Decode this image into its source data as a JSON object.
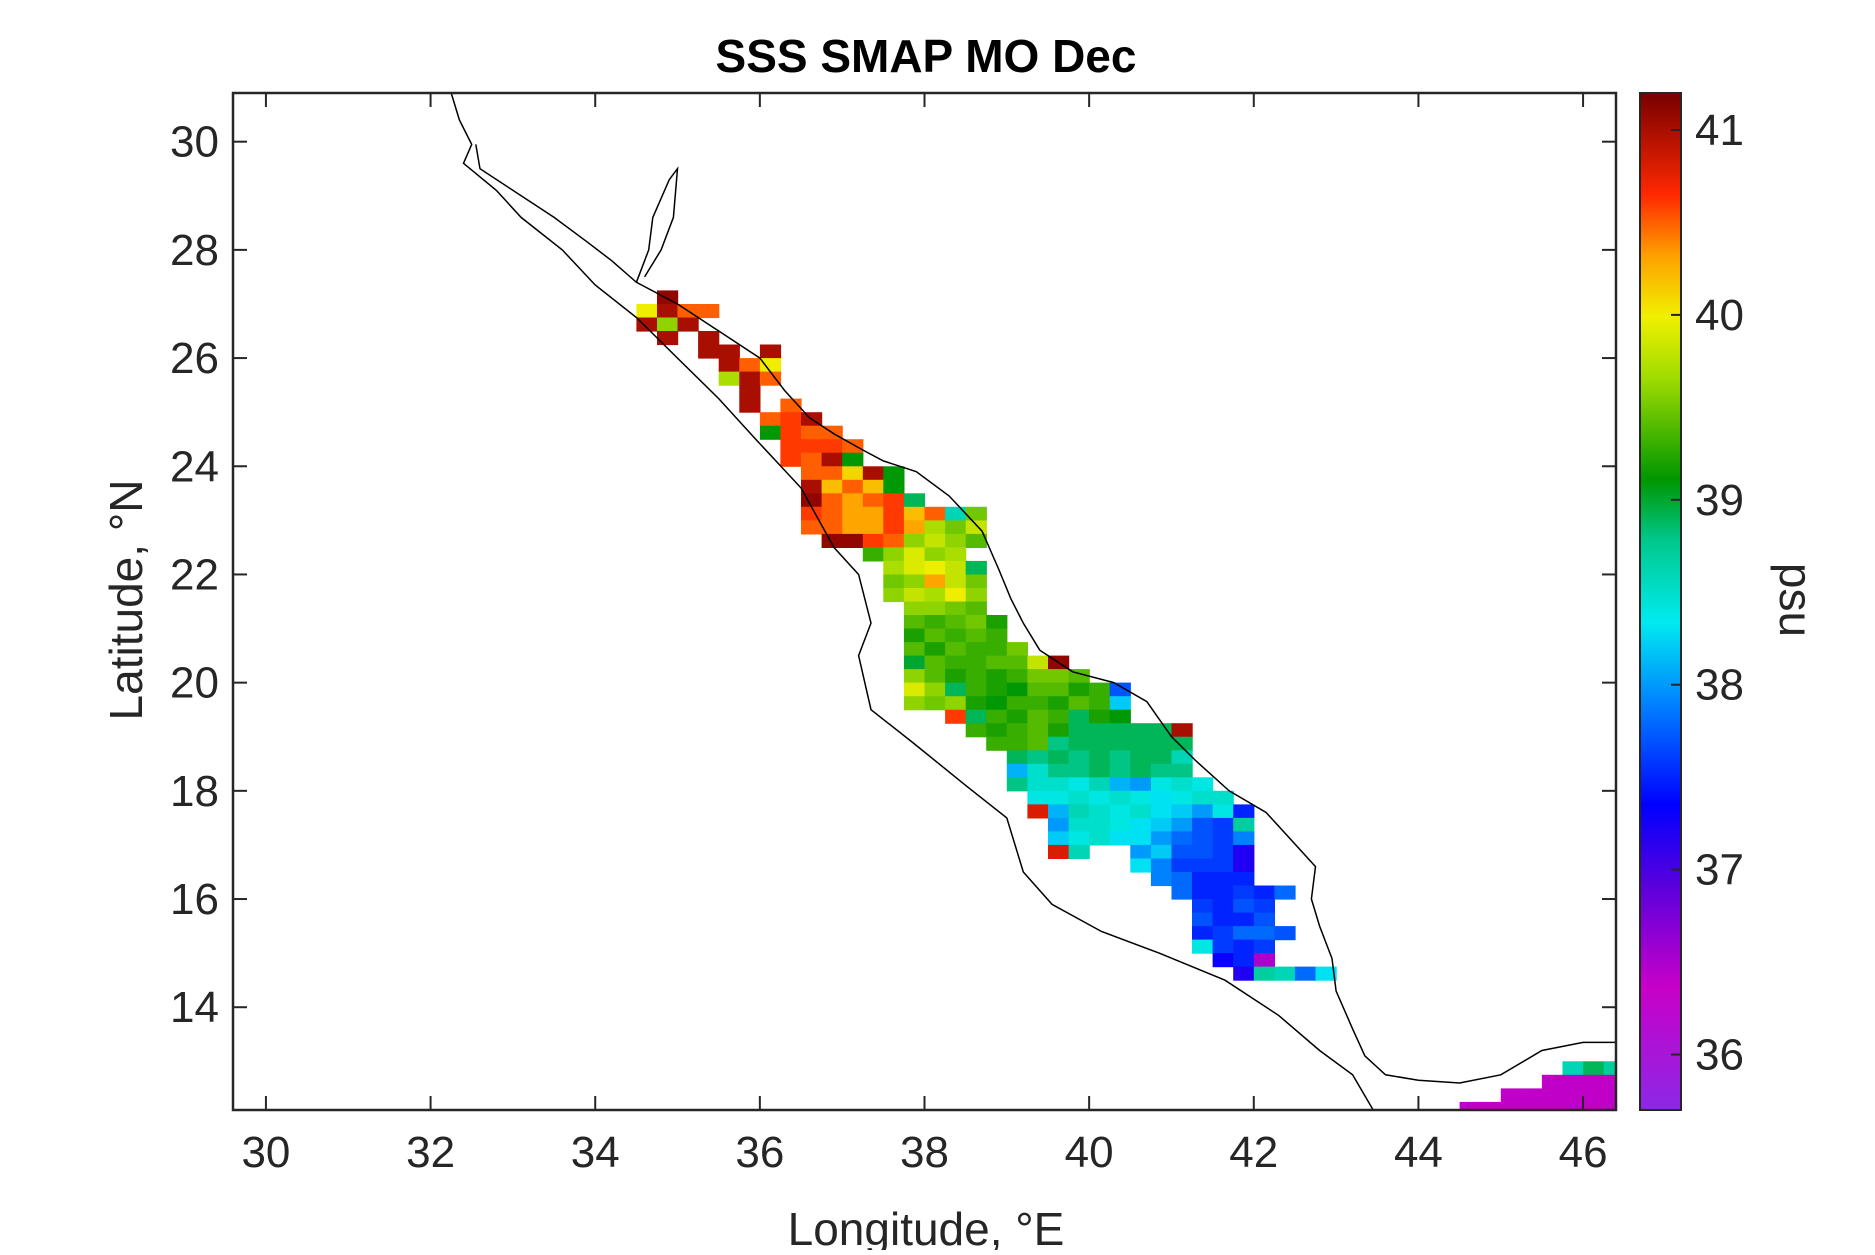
{
  "chart_data": {
    "type": "heatmap",
    "title": "SSS SMAP MO Dec",
    "xlabel": "Longitude, °E",
    "ylabel": "Latitude, °N",
    "xlim": [
      29.6,
      46.4
    ],
    "ylim": [
      12.1,
      30.9
    ],
    "xticks": [
      30,
      32,
      34,
      36,
      38,
      40,
      42,
      44,
      46
    ],
    "yticks": [
      14,
      16,
      18,
      20,
      22,
      24,
      26,
      28,
      30
    ],
    "colorbar": {
      "label": "psu",
      "range": [
        35.7,
        41.2
      ],
      "ticks": [
        36,
        37,
        38,
        39,
        40,
        41
      ],
      "colormap": "jet-rainbow-purple-to-maroon"
    },
    "grid": false,
    "cell_size_deg": 0.25,
    "rows": [
      {
        "lat": 27.0,
        "lon_start": 34.75,
        "values": [
          41.1
        ]
      },
      {
        "lat": 26.75,
        "lon_start": 34.5,
        "values": [
          40.0,
          41.0,
          40.5,
          40.5
        ]
      },
      {
        "lat": 26.5,
        "lon_start": 34.5,
        "values": [
          41.0,
          39.6,
          41.0
        ]
      },
      {
        "lat": 26.25,
        "lon_start": 34.75,
        "values": [
          41.0,
          null,
          41.0
        ]
      },
      {
        "lat": 26.0,
        "lon_start": 35.25,
        "values": [
          41.0,
          41.0,
          null,
          41.0
        ]
      },
      {
        "lat": 25.75,
        "lon_start": 35.5,
        "values": [
          41.0,
          40.5,
          40.0
        ]
      },
      {
        "lat": 25.5,
        "lon_start": 35.5,
        "values": [
          39.7,
          41.0,
          40.5
        ]
      },
      {
        "lat": 25.25,
        "lon_start": 35.75,
        "values": [
          41.0
        ]
      },
      {
        "lat": 25.0,
        "lon_start": 35.75,
        "values": [
          41.0,
          null,
          40.5
        ]
      },
      {
        "lat": 24.75,
        "lon_start": 36.0,
        "values": [
          40.5,
          40.6,
          41.0
        ]
      },
      {
        "lat": 24.5,
        "lon_start": 36.0,
        "values": [
          39.1,
          40.6,
          40.5,
          40.5
        ]
      },
      {
        "lat": 24.25,
        "lon_start": 36.25,
        "values": [
          40.6,
          40.6,
          40.6,
          40.5
        ]
      },
      {
        "lat": 24.0,
        "lon_start": 36.25,
        "values": [
          40.6,
          40.5,
          41.0,
          39.1
        ]
      },
      {
        "lat": 23.75,
        "lon_start": 36.5,
        "values": [
          40.5,
          40.5,
          40.1,
          41.0,
          39.1
        ]
      },
      {
        "lat": 23.5,
        "lon_start": 36.5,
        "values": [
          41.0,
          40.2,
          40.5,
          40.2,
          39.1
        ]
      },
      {
        "lat": 23.25,
        "lon_start": 36.5,
        "values": [
          41.1,
          40.5,
          40.3,
          40.5,
          40.6,
          38.9
        ]
      },
      {
        "lat": 23.0,
        "lon_start": 36.5,
        "values": [
          40.6,
          40.5,
          40.3,
          40.3,
          40.6,
          40.2,
          40.5,
          38.6,
          39.5
        ]
      },
      {
        "lat": 22.75,
        "lon_start": 36.5,
        "values": [
          40.5,
          40.5,
          40.3,
          40.3,
          40.6,
          40.3,
          39.7,
          39.5,
          39.8
        ]
      },
      {
        "lat": 22.5,
        "lon_start": 36.75,
        "values": [
          41.1,
          41.1,
          40.6,
          40.5,
          39.6,
          39.8,
          39.6,
          39.4
        ]
      },
      {
        "lat": 22.25,
        "lon_start": 37.25,
        "values": [
          39.3,
          39.6,
          39.9,
          39.6,
          39.7
        ]
      },
      {
        "lat": 22.0,
        "lon_start": 37.5,
        "values": [
          39.7,
          39.9,
          40.0,
          39.8,
          38.9
        ]
      },
      {
        "lat": 21.75,
        "lon_start": 37.5,
        "values": [
          39.5,
          39.6,
          40.3,
          39.8,
          39.5
        ]
      },
      {
        "lat": 21.5,
        "lon_start": 37.5,
        "values": [
          39.6,
          39.8,
          39.7,
          40.0,
          39.6
        ]
      },
      {
        "lat": 21.25,
        "lon_start": 37.75,
        "values": [
          39.6,
          39.6,
          39.5,
          39.4
        ]
      },
      {
        "lat": 21.0,
        "lon_start": 37.75,
        "values": [
          39.4,
          39.3,
          39.4,
          39.5,
          39.2
        ]
      },
      {
        "lat": 20.75,
        "lon_start": 37.75,
        "values": [
          39.2,
          39.4,
          39.3,
          39.4,
          39.3
        ]
      },
      {
        "lat": 20.5,
        "lon_start": 37.75,
        "values": [
          39.4,
          39.2,
          39.4,
          39.3,
          39.3,
          39.5
        ]
      },
      {
        "lat": 20.25,
        "lon_start": 37.75,
        "values": [
          39.0,
          39.4,
          39.3,
          39.3,
          39.4,
          39.4,
          39.8,
          41.1
        ]
      },
      {
        "lat": 20.0,
        "lon_start": 37.75,
        "values": [
          39.6,
          39.4,
          39.2,
          39.3,
          39.2,
          39.3,
          39.5,
          39.5,
          39.4
        ]
      },
      {
        "lat": 19.75,
        "lon_start": 37.75,
        "values": [
          39.9,
          39.6,
          38.9,
          39.3,
          39.2,
          39.1,
          39.4,
          39.4,
          39.2,
          39.3,
          37.7
        ]
      },
      {
        "lat": 19.5,
        "lon_start": 37.75,
        "values": [
          39.6,
          39.5,
          39.6,
          39.2,
          39.1,
          39.3,
          39.3,
          39.2,
          39.4,
          39.3,
          38.2
        ]
      },
      {
        "lat": 19.25,
        "lon_start": 38.25,
        "values": [
          40.6,
          38.9,
          39.3,
          39.2,
          39.4,
          39.3,
          38.9,
          39.2,
          39.1
        ]
      },
      {
        "lat": 19.0,
        "lon_start": 38.5,
        "values": [
          39.3,
          39.2,
          39.3,
          39.4,
          39.2,
          38.9,
          38.9,
          38.9,
          38.9,
          38.9,
          41.0
        ]
      },
      {
        "lat": 18.75,
        "lon_start": 38.75,
        "values": [
          39.3,
          39.3,
          39.4,
          38.8,
          38.9,
          38.9,
          38.9,
          38.9,
          38.9,
          38.9
        ]
      },
      {
        "lat": 18.5,
        "lon_start": 39.0,
        "values": [
          38.9,
          38.8,
          38.9,
          38.8,
          38.9,
          38.8,
          38.9,
          38.9,
          38.6
        ]
      },
      {
        "lat": 18.25,
        "lon_start": 39.0,
        "values": [
          38.1,
          38.5,
          38.8,
          38.8,
          38.9,
          38.8,
          38.9,
          38.8,
          38.8
        ]
      },
      {
        "lat": 18.0,
        "lon_start": 39.0,
        "values": [
          38.8,
          38.5,
          38.5,
          38.4,
          38.6,
          38.1,
          38.0,
          38.4,
          38.5,
          38.4
        ]
      },
      {
        "lat": 17.75,
        "lon_start": 39.25,
        "values": [
          38.4,
          38.4,
          38.5,
          38.4,
          38.5,
          38.4,
          38.3,
          38.4,
          38.5,
          38.5
        ]
      },
      {
        "lat": 17.5,
        "lon_start": 39.25,
        "values": [
          40.8,
          38.1,
          38.6,
          38.5,
          38.4,
          38.5,
          38.3,
          38.2,
          38.0,
          38.4,
          37.5
        ]
      },
      {
        "lat": 17.25,
        "lon_start": 39.5,
        "values": [
          38.0,
          38.5,
          38.5,
          38.4,
          38.3,
          38.2,
          38.0,
          37.7,
          37.6,
          38.7
        ]
      },
      {
        "lat": 17.0,
        "lon_start": 39.5,
        "values": [
          38.2,
          38.4,
          38.5,
          38.3,
          38.3,
          38.0,
          37.8,
          37.7,
          37.6,
          37.9
        ]
      },
      {
        "lat": 16.75,
        "lon_start": 39.5,
        "values": [
          40.8,
          38.6,
          null,
          null,
          38.0,
          38.2,
          37.7,
          37.7,
          37.6,
          37.2
        ]
      },
      {
        "lat": 16.5,
        "lon_start": 40.5,
        "values": [
          38.3,
          37.9,
          37.6,
          37.6,
          37.6,
          37.2
        ]
      },
      {
        "lat": 16.25,
        "lon_start": 40.75,
        "values": [
          37.9,
          37.8,
          37.5,
          37.5,
          37.5
        ]
      },
      {
        "lat": 16.0,
        "lon_start": 41.0,
        "values": [
          37.8,
          37.5,
          37.5,
          37.6,
          37.5,
          37.8
        ]
      },
      {
        "lat": 15.75,
        "lon_start": 41.25,
        "values": [
          37.6,
          37.5,
          37.7,
          37.6
        ]
      },
      {
        "lat": 15.5,
        "lon_start": 41.25,
        "values": [
          37.7,
          37.5,
          37.5,
          37.7
        ]
      },
      {
        "lat": 15.25,
        "lon_start": 41.25,
        "values": [
          37.5,
          37.6,
          37.8,
          37.8,
          37.7
        ]
      },
      {
        "lat": 15.0,
        "lon_start": 41.25,
        "values": [
          38.4,
          37.6,
          37.5,
          37.6
        ]
      },
      {
        "lat": 14.75,
        "lon_start": 41.5,
        "values": [
          37.3,
          37.5,
          36.5
        ]
      },
      {
        "lat": 14.5,
        "lon_start": 41.75,
        "values": [
          37.2,
          38.7,
          38.6,
          37.8,
          38.3
        ]
      },
      {
        "lat": 12.75,
        "lon_start": 45.75,
        "values": [
          38.6,
          38.9,
          38.7,
          38.3
        ]
      },
      {
        "lat": 12.5,
        "lon_start": 45.5,
        "values": [
          36.4,
          36.4,
          36.4,
          36.4,
          36.4
        ]
      },
      {
        "lat": 12.25,
        "lon_start": 45.0,
        "values": [
          36.4,
          36.4,
          36.4,
          36.4,
          36.4,
          36.4,
          36.4
        ]
      },
      {
        "lat": 12.0,
        "lon_start": 44.5,
        "values": [
          36.4,
          36.4,
          36.4,
          36.4,
          36.4,
          36.4,
          36.4,
          36.4,
          36.4
        ]
      }
    ],
    "coastline_west": [
      [
        32.25,
        30.9
      ],
      [
        32.35,
        30.4
      ],
      [
        32.5,
        29.95
      ],
      [
        32.4,
        29.6
      ],
      [
        32.8,
        29.1
      ],
      [
        33.1,
        28.6
      ],
      [
        33.6,
        28.0
      ],
      [
        34.0,
        27.35
      ],
      [
        34.5,
        26.75
      ],
      [
        35.0,
        26.0
      ],
      [
        35.5,
        25.25
      ],
      [
        35.95,
        24.5
      ],
      [
        36.5,
        23.6
      ],
      [
        36.9,
        22.5
      ],
      [
        37.2,
        22.0
      ],
      [
        37.35,
        21.1
      ],
      [
        37.2,
        20.5
      ],
      [
        37.35,
        19.5
      ],
      [
        37.85,
        18.9
      ],
      [
        38.5,
        18.1
      ],
      [
        39.0,
        17.5
      ],
      [
        39.2,
        16.5
      ],
      [
        39.55,
        15.9
      ],
      [
        40.15,
        15.4
      ],
      [
        40.85,
        15.0
      ],
      [
        41.65,
        14.5
      ],
      [
        42.3,
        13.85
      ],
      [
        42.8,
        13.2
      ],
      [
        43.2,
        12.75
      ],
      [
        43.45,
        12.1
      ]
    ],
    "coastline_east": [
      [
        32.55,
        29.95
      ],
      [
        32.6,
        29.5
      ],
      [
        33.5,
        28.6
      ],
      [
        33.9,
        28.15
      ],
      [
        34.2,
        27.8
      ],
      [
        34.5,
        27.4
      ],
      [
        35.0,
        27.0
      ],
      [
        35.6,
        26.4
      ],
      [
        36.0,
        26.0
      ],
      [
        36.3,
        25.4
      ],
      [
        36.6,
        24.9
      ],
      [
        36.9,
        24.6
      ],
      [
        37.25,
        24.3
      ],
      [
        37.5,
        24.1
      ],
      [
        37.9,
        23.9
      ],
      [
        38.3,
        23.45
      ],
      [
        38.7,
        22.8
      ],
      [
        38.9,
        22.1
      ],
      [
        39.05,
        21.55
      ],
      [
        39.2,
        21.1
      ],
      [
        39.4,
        20.6
      ],
      [
        39.8,
        20.2
      ],
      [
        40.3,
        20.0
      ],
      [
        40.7,
        19.65
      ],
      [
        41.0,
        19.0
      ],
      [
        41.3,
        18.55
      ],
      [
        41.7,
        18.0
      ],
      [
        42.15,
        17.6
      ],
      [
        42.45,
        17.1
      ],
      [
        42.75,
        16.6
      ],
      [
        42.7,
        16.0
      ],
      [
        42.8,
        15.5
      ],
      [
        42.95,
        14.9
      ],
      [
        43.0,
        14.3
      ],
      [
        43.2,
        13.6
      ],
      [
        43.35,
        13.1
      ],
      [
        43.6,
        12.75
      ],
      [
        44.0,
        12.65
      ],
      [
        44.5,
        12.6
      ],
      [
        45.0,
        12.75
      ],
      [
        45.5,
        13.2
      ],
      [
        46.0,
        13.35
      ],
      [
        46.4,
        13.35
      ]
    ],
    "aqaba": [
      [
        34.5,
        27.4
      ],
      [
        34.65,
        28.0
      ],
      [
        34.7,
        28.6
      ],
      [
        34.9,
        29.3
      ],
      [
        35.0,
        29.5
      ],
      [
        34.95,
        28.6
      ],
      [
        34.8,
        28.0
      ],
      [
        34.6,
        27.5
      ]
    ]
  }
}
